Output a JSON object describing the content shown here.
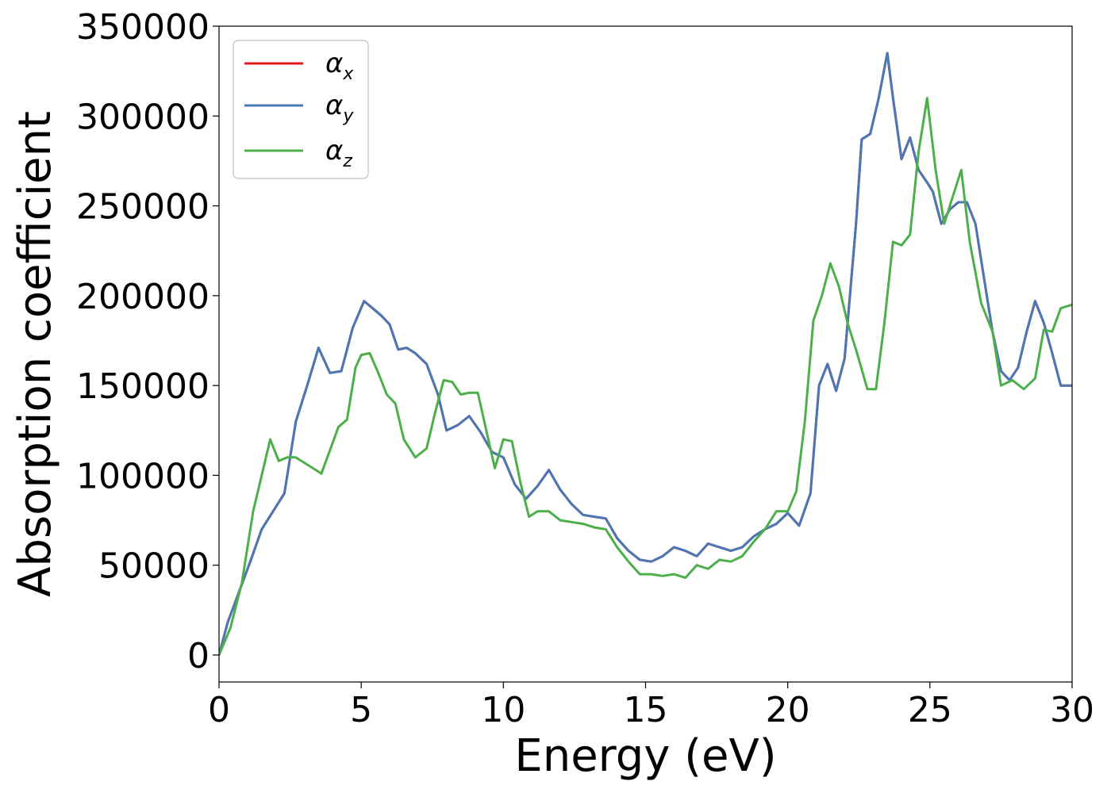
{
  "chart_data": {
    "type": "line",
    "xlabel": "Energy (eV)",
    "ylabel": "Absorption coefficient",
    "xlim": [
      0,
      30
    ],
    "ylim": [
      -15000,
      350000
    ],
    "xticks": [
      0,
      5,
      10,
      15,
      20,
      25,
      30
    ],
    "yticks": [
      0,
      50000,
      100000,
      150000,
      200000,
      250000,
      300000,
      350000
    ],
    "grid": false,
    "legend_position": "top-left",
    "series": [
      {
        "name": "αx",
        "legend_base": "α",
        "legend_sub": "x",
        "color": "#e41a1c",
        "x": [
          0,
          0.3,
          0.7,
          1.1,
          1.5,
          1.9,
          2.3,
          2.7,
          3.1,
          3.5,
          3.9,
          4.3,
          4.7,
          5.1,
          5.4,
          5.7,
          6.0,
          6.3,
          6.6,
          6.9,
          7.3,
          7.7,
          8.0,
          8.4,
          8.8,
          9.2,
          9.6,
          10.0,
          10.4,
          10.8,
          11.2,
          11.6,
          12.0,
          12.4,
          12.8,
          13.2,
          13.6,
          14.0,
          14.4,
          14.8,
          15.2,
          15.6,
          16.0,
          16.4,
          16.8,
          17.2,
          17.6,
          18.0,
          18.4,
          18.8,
          19.2,
          19.6,
          20.0,
          20.4,
          20.8,
          21.1,
          21.4,
          21.7,
          22.0,
          22.4,
          22.6,
          22.9,
          23.2,
          23.5,
          23.7,
          24.0,
          24.3,
          24.6,
          24.9,
          25.1,
          25.4,
          25.7,
          26.0,
          26.3,
          26.6,
          26.9,
          27.2,
          27.5,
          27.8,
          28.1,
          28.4,
          28.7,
          29.0,
          29.3,
          29.6,
          30.0
        ],
        "values": [
          0,
          18000,
          35000,
          52000,
          70000,
          80000,
          90000,
          130000,
          150000,
          171000,
          157000,
          158000,
          182000,
          197000,
          193000,
          189000,
          184000,
          170000,
          171000,
          168000,
          162000,
          145000,
          125000,
          128000,
          133000,
          124000,
          113000,
          110000,
          95000,
          87000,
          94000,
          103000,
          92000,
          84000,
          78000,
          77000,
          76000,
          65000,
          58000,
          53000,
          52000,
          55000,
          60000,
          58000,
          55000,
          62000,
          60000,
          58000,
          60000,
          66000,
          70000,
          73000,
          79000,
          72000,
          90000,
          150000,
          162000,
          147000,
          165000,
          240000,
          287000,
          290000,
          310000,
          335000,
          310000,
          276000,
          288000,
          270000,
          263000,
          258000,
          240000,
          248000,
          252000,
          252000,
          240000,
          210000,
          180000,
          158000,
          153000,
          160000,
          180000,
          197000,
          185000,
          168000,
          150000,
          150000
        ]
      },
      {
        "name": "αy",
        "legend_base": "α",
        "legend_sub": "y",
        "color": "#4a78b4",
        "x": [
          0,
          0.3,
          0.7,
          1.1,
          1.5,
          1.9,
          2.3,
          2.7,
          3.1,
          3.5,
          3.9,
          4.3,
          4.7,
          5.1,
          5.4,
          5.7,
          6.0,
          6.3,
          6.6,
          6.9,
          7.3,
          7.7,
          8.0,
          8.4,
          8.8,
          9.2,
          9.6,
          10.0,
          10.4,
          10.8,
          11.2,
          11.6,
          12.0,
          12.4,
          12.8,
          13.2,
          13.6,
          14.0,
          14.4,
          14.8,
          15.2,
          15.6,
          16.0,
          16.4,
          16.8,
          17.2,
          17.6,
          18.0,
          18.4,
          18.8,
          19.2,
          19.6,
          20.0,
          20.4,
          20.8,
          21.1,
          21.4,
          21.7,
          22.0,
          22.4,
          22.6,
          22.9,
          23.2,
          23.5,
          23.7,
          24.0,
          24.3,
          24.6,
          24.9,
          25.1,
          25.4,
          25.7,
          26.0,
          26.3,
          26.6,
          26.9,
          27.2,
          27.5,
          27.8,
          28.1,
          28.4,
          28.7,
          29.0,
          29.3,
          29.6,
          30.0
        ],
        "values": [
          0,
          18000,
          35000,
          52000,
          70000,
          80000,
          90000,
          130000,
          150000,
          171000,
          157000,
          158000,
          182000,
          197000,
          193000,
          189000,
          184000,
          170000,
          171000,
          168000,
          162000,
          145000,
          125000,
          128000,
          133000,
          124000,
          113000,
          110000,
          95000,
          87000,
          94000,
          103000,
          92000,
          84000,
          78000,
          77000,
          76000,
          65000,
          58000,
          53000,
          52000,
          55000,
          60000,
          58000,
          55000,
          62000,
          60000,
          58000,
          60000,
          66000,
          70000,
          73000,
          79000,
          72000,
          90000,
          150000,
          162000,
          147000,
          165000,
          240000,
          287000,
          290000,
          310000,
          335000,
          310000,
          276000,
          288000,
          270000,
          263000,
          258000,
          240000,
          248000,
          252000,
          252000,
          240000,
          210000,
          180000,
          158000,
          153000,
          160000,
          180000,
          197000,
          185000,
          168000,
          150000,
          150000
        ]
      },
      {
        "name": "αz",
        "legend_base": "α",
        "legend_sub": "z",
        "color": "#4daf4a",
        "x": [
          0,
          0.4,
          0.8,
          1.2,
          1.5,
          1.8,
          2.1,
          2.4,
          2.7,
          3.0,
          3.3,
          3.6,
          3.9,
          4.2,
          4.5,
          4.8,
          5.0,
          5.3,
          5.6,
          5.9,
          6.2,
          6.5,
          6.9,
          7.3,
          7.6,
          7.9,
          8.2,
          8.5,
          8.8,
          9.1,
          9.4,
          9.7,
          10.0,
          10.3,
          10.6,
          10.9,
          11.2,
          11.6,
          12.0,
          12.4,
          12.8,
          13.2,
          13.6,
          14.0,
          14.4,
          14.8,
          15.2,
          15.6,
          16.0,
          16.4,
          16.8,
          17.2,
          17.6,
          18.0,
          18.4,
          18.8,
          19.2,
          19.6,
          20.0,
          20.3,
          20.6,
          20.9,
          21.2,
          21.5,
          21.8,
          22.1,
          22.4,
          22.8,
          23.1,
          23.4,
          23.7,
          24.0,
          24.3,
          24.6,
          24.9,
          25.2,
          25.5,
          25.8,
          26.1,
          26.4,
          26.8,
          27.2,
          27.5,
          27.9,
          28.3,
          28.7,
          29.0,
          29.3,
          29.6,
          30.0
        ],
        "values": [
          0,
          15000,
          40000,
          80000,
          100000,
          120000,
          108000,
          110000,
          110000,
          107000,
          104000,
          101000,
          114000,
          127000,
          131000,
          160000,
          167000,
          168000,
          157000,
          145000,
          140000,
          120000,
          110000,
          115000,
          135000,
          153000,
          152000,
          145000,
          146000,
          146000,
          125000,
          104000,
          120000,
          119000,
          96000,
          77000,
          80000,
          80000,
          75000,
          74000,
          73000,
          71000,
          70000,
          60000,
          52000,
          45000,
          45000,
          44000,
          45000,
          43000,
          50000,
          48000,
          53000,
          52000,
          55000,
          63000,
          70000,
          80000,
          80000,
          91000,
          130000,
          186000,
          200000,
          218000,
          205000,
          185000,
          170000,
          148000,
          148000,
          185000,
          230000,
          228000,
          234000,
          280000,
          310000,
          270000,
          240000,
          255000,
          270000,
          230000,
          196000,
          180000,
          150000,
          153000,
          148000,
          154000,
          181000,
          180000,
          193000,
          195000
        ]
      }
    ]
  }
}
